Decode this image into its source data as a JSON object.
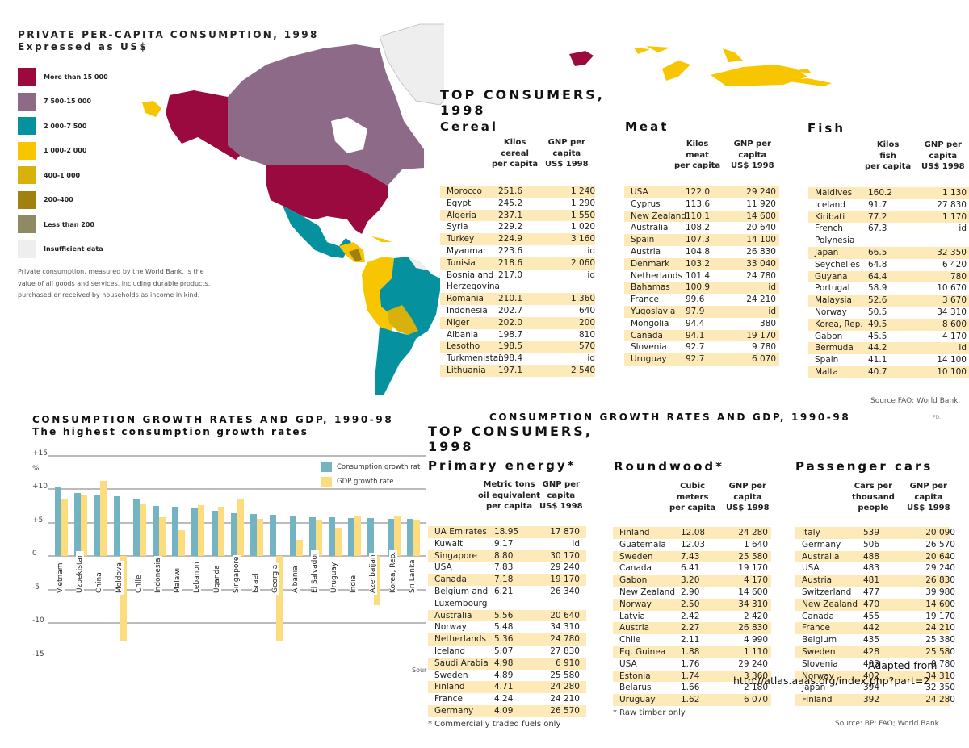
{
  "map": {
    "title": "PRIVATE PER-CAPITA CONSUMPTION, 1998",
    "subtitle": "Expressed as US$",
    "legend": [
      {
        "label": "More than 15 000",
        "color": "#9b0a3f"
      },
      {
        "label": "7 500-15 000",
        "color": "#8d6a88"
      },
      {
        "label": "2 000-7 500",
        "color": "#06919f"
      },
      {
        "label": "1 000-2 000",
        "color": "#f8c600"
      },
      {
        "label": "400-1 000",
        "color": "#d9b10c"
      },
      {
        "label": "200-400",
        "color": "#a0800e"
      },
      {
        "label": "Less than 200",
        "color": "#8f8a64"
      },
      {
        "label": "Insufficient data",
        "color": "#eeeeee"
      }
    ],
    "note": "Private consumption, measured by the World Bank, is the value of all goods and services, including durable products, purchased or received by households as income in kind."
  },
  "top_consumers_1": {
    "title_line1": "TOP CONSUMERS,",
    "title_line2": "1998",
    "source": "Source FAO; World Bank.",
    "tables": [
      {
        "title": "Cereal",
        "col1": "Kilos\ncereal\nper capita",
        "col2": "GNP per\ncapita\nUS$ 1998",
        "rows": [
          [
            "Morocco",
            "251.6",
            "1 240"
          ],
          [
            "Egypt",
            "245.2",
            "1 290"
          ],
          [
            "Algeria",
            "237.1",
            "1 550"
          ],
          [
            "Syria",
            "229.2",
            "1 020"
          ],
          [
            "Turkey",
            "224.9",
            "3 160"
          ],
          [
            "Myanmar",
            "223.6",
            "id"
          ],
          [
            "Tunisia",
            "218.6",
            "2 060"
          ],
          [
            "Bosnia and Herzegovina",
            "217.0",
            "id"
          ],
          [
            "Romania",
            "210.1",
            "1 360"
          ],
          [
            "Indonesia",
            "202.7",
            "640"
          ],
          [
            "Niger",
            "202.0",
            "200"
          ],
          [
            "Albania",
            "198.7",
            "810"
          ],
          [
            "Lesotho",
            "198.5",
            "570"
          ],
          [
            "Turkmenistan",
            "198.4",
            "id"
          ],
          [
            "Lithuania",
            "197.1",
            "2 540"
          ]
        ]
      },
      {
        "title": "Meat",
        "col1": "Kilos\nmeat\nper capita",
        "col2": "GNP per\ncapita\nUS$ 1998",
        "rows": [
          [
            "USA",
            "122.0",
            "29 240"
          ],
          [
            "Cyprus",
            "113.6",
            "11 920"
          ],
          [
            "New Zealand",
            "110.1",
            "14 600"
          ],
          [
            "Australia",
            "108.2",
            "20 640"
          ],
          [
            "Spain",
            "107.3",
            "14 100"
          ],
          [
            "Austria",
            "104.8",
            "26 830"
          ],
          [
            "Denmark",
            "103.2",
            "33 040"
          ],
          [
            "Netherlands",
            "101.4",
            "24 780"
          ],
          [
            "Bahamas",
            "100.9",
            "id"
          ],
          [
            "France",
            "99.6",
            "24 210"
          ],
          [
            "Yugoslavia",
            "97.9",
            "id"
          ],
          [
            "Mongolia",
            "94.4",
            "380"
          ],
          [
            "Canada",
            "94.1",
            "19 170"
          ],
          [
            "Slovenia",
            "92.7",
            "9 780"
          ],
          [
            "Uruguay",
            "92.7",
            "6 070"
          ]
        ]
      },
      {
        "title": "Fish",
        "col1": "Kilos\nfish\nper capita",
        "col2": "GNP per\ncapita\nUS$ 1998",
        "rows": [
          [
            "Maldives",
            "160.2",
            "1 130"
          ],
          [
            "Iceland",
            "91.7",
            "27 830"
          ],
          [
            "Kiribati",
            "77.2",
            "1 170"
          ],
          [
            "French Polynesia",
            "67.3",
            "id"
          ],
          [
            "Japan",
            "66.5",
            "32 350"
          ],
          [
            "Seychelles",
            "64.8",
            "6 420"
          ],
          [
            "Guyana",
            "64.4",
            "780"
          ],
          [
            "Portugal",
            "58.9",
            "10 670"
          ],
          [
            "Malaysia",
            "52.6",
            "3 670"
          ],
          [
            "Norway",
            "50.5",
            "34 310"
          ],
          [
            "Korea, Rep.",
            "49.5",
            "8 600"
          ],
          [
            "Gabon",
            "45.5",
            "4 170"
          ],
          [
            "Bermuda",
            "44.2",
            "id"
          ],
          [
            "Spain",
            "41.1",
            "14 100"
          ],
          [
            "Malta",
            "40.7",
            "10 100"
          ]
        ]
      }
    ]
  },
  "top_consumers_2": {
    "heading_overlap": "CONSUMPTION GROWTH RATES AND GDP, 1990-98",
    "title_line1": "TOP CONSUMERS,",
    "title_line2": "1998",
    "tag": "FD.",
    "source": "Source: BP; FAO; World Bank.",
    "tables": [
      {
        "title": "Primary energy*",
        "col1": "Metric tons\noil equivalent\nper capita",
        "col2": "GNP per\ncapita\nUS$ 1998",
        "note": "* Commercially traded fuels only",
        "rows": [
          [
            "UA Emirates",
            "18.95",
            "17 870"
          ],
          [
            "Kuwait",
            "9.17",
            "id"
          ],
          [
            "Singapore",
            "8.80",
            "30 170"
          ],
          [
            "USA",
            "7.83",
            "29 240"
          ],
          [
            "Canada",
            "7.18",
            "19 170"
          ],
          [
            "Belgium and Luxembourg",
            "6.21",
            "26 340"
          ],
          [
            "Australia",
            "5.56",
            "20 640"
          ],
          [
            "Norway",
            "5.48",
            "34 310"
          ],
          [
            "Netherlands",
            "5.36",
            "24 780"
          ],
          [
            "Iceland",
            "5.07",
            "27 830"
          ],
          [
            "Saudi Arabia",
            "4.98",
            "6 910"
          ],
          [
            "Sweden",
            "4.89",
            "25 580"
          ],
          [
            "Finland",
            "4.71",
            "24 280"
          ],
          [
            "France",
            "4.24",
            "24 210"
          ],
          [
            "Germany",
            "4.09",
            "26 570"
          ]
        ]
      },
      {
        "title": "Roundwood*",
        "col1": "Cubic\nmeters\nper capita",
        "col2": "GNP per\ncapita\nUS$ 1998",
        "note": "* Raw timber only",
        "rows": [
          [
            "Finland",
            "12.08",
            "24 280"
          ],
          [
            "Guatemala",
            "12.03",
            "1 640"
          ],
          [
            "Sweden",
            "7.43",
            "25 580"
          ],
          [
            "Canada",
            "6.41",
            "19 170"
          ],
          [
            "Gabon",
            "3.20",
            "4 170"
          ],
          [
            "New Zealand",
            "2.90",
            "14 600"
          ],
          [
            "Norway",
            "2.50",
            "34 310"
          ],
          [
            "Latvia",
            "2.42",
            "2 420"
          ],
          [
            "Austria",
            "2.27",
            "26 830"
          ],
          [
            "Chile",
            "2.11",
            "4 990"
          ],
          [
            "Eq. Guinea",
            "1.88",
            "1 110"
          ],
          [
            "USA",
            "1.76",
            "29 240"
          ],
          [
            "Estonia",
            "1.74",
            "3 360"
          ],
          [
            "Belarus",
            "1.66",
            "2 180"
          ],
          [
            "Uruguay",
            "1.62",
            "6 070"
          ]
        ]
      },
      {
        "title": "Passenger cars",
        "col1": "Cars per\nthousand\npeople",
        "col2": "GNP per\ncapita\nUS$ 1998",
        "note": "",
        "rows": [
          [
            "Italy",
            "539",
            "20 090"
          ],
          [
            "Germany",
            "506",
            "26 570"
          ],
          [
            "Australia",
            "488",
            "20 640"
          ],
          [
            "USA",
            "483",
            "29 240"
          ],
          [
            "Austria",
            "481",
            "26 830"
          ],
          [
            "Switzerland",
            "477",
            "39 980"
          ],
          [
            "New Zealand",
            "470",
            "14 600"
          ],
          [
            "Canada",
            "455",
            "19 170"
          ],
          [
            "France",
            "442",
            "24 210"
          ],
          [
            "Belgium",
            "435",
            "25 380"
          ],
          [
            "Sweden",
            "428",
            "25 580"
          ],
          [
            "Slovenia",
            "403",
            "9 780"
          ],
          [
            "Norway",
            "402",
            "34 310"
          ],
          [
            "Japan",
            "394",
            "32 350"
          ],
          [
            "Finland",
            "392",
            "24 280"
          ]
        ]
      }
    ]
  },
  "growth_chart": {
    "title": "CONSUMPTION GROWTH RATES AND GDP, 1990-98",
    "subtitle": "The highest consumption growth rates",
    "y_unit": "%",
    "source_fragment": "Sour",
    "legend": [
      {
        "label": "Consumption growth rat",
        "color": "#74b3c1"
      },
      {
        "label": "GDP growth rate",
        "color": "#fddc7e"
      }
    ],
    "yticks": [
      "+15",
      "+10",
      "+5",
      "0",
      "-5",
      "-10",
      "-15"
    ]
  },
  "chart_data": {
    "type": "bar",
    "title": "CONSUMPTION GROWTH RATES AND GDP, 1990-98",
    "subtitle": "The highest consumption growth rates",
    "xlabel": "",
    "ylabel": "%",
    "ylim": [
      -15,
      15
    ],
    "yticks": [
      15,
      10,
      5,
      0,
      -5,
      -10,
      -15
    ],
    "grid": true,
    "legend_position": "top-right",
    "categories": [
      "Vietnam",
      "Uzbekistan",
      "China",
      "Moldova",
      "Chile",
      "Indonesia",
      "Malawi",
      "Lebanon",
      "Uganda",
      "Singapore",
      "Israel",
      "Georgia",
      "Albania",
      "El Salvador",
      "Uruguay",
      "India",
      "Azerbaijan",
      "Korea, Rep.",
      "Sri Lanka"
    ],
    "series": [
      {
        "name": "Consumption growth rate",
        "color": "#74b3c1",
        "values": [
          10.2,
          9.4,
          9.2,
          8.9,
          8.6,
          7.5,
          7.4,
          7.1,
          6.7,
          6.4,
          6.3,
          6.1,
          6.0,
          5.8,
          5.8,
          5.7,
          5.7,
          5.6,
          5.5
        ]
      },
      {
        "name": "GDP growth rate",
        "color": "#fddc7e",
        "values": [
          8.4,
          9.2,
          11.2,
          -12.6,
          7.8,
          5.8,
          3.8,
          7.6,
          7.3,
          8.4,
          5.5,
          -12.8,
          2.4,
          5.4,
          4.2,
          6.0,
          -7.4,
          6.0,
          5.4
        ]
      }
    ]
  },
  "overlay": {
    "line1": "Adapted from",
    "line2": "http://atlas.aaas.org/index.php?part=2"
  }
}
